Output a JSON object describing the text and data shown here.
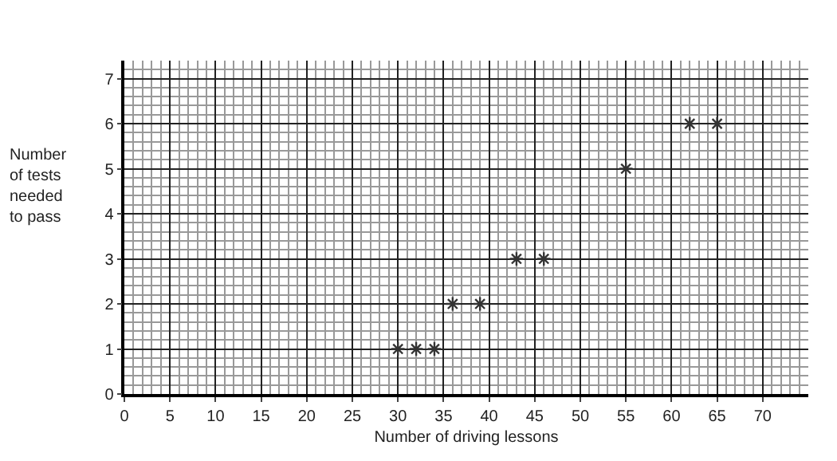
{
  "chart_data": {
    "type": "scatter",
    "xlabel": "Number of driving lessons",
    "ylabel": "Number of tests needed to pass",
    "x": [
      30,
      32,
      34,
      36,
      39,
      43,
      46,
      55,
      62,
      65
    ],
    "values": [
      1,
      1,
      1,
      2,
      2,
      3,
      3,
      5,
      6,
      6
    ],
    "color": "#333333",
    "marker": "cross",
    "xlim": [
      0,
      75
    ],
    "xticks": [
      0,
      5,
      10,
      15,
      20,
      25,
      30,
      35,
      40,
      45,
      50,
      55,
      60,
      65,
      70
    ],
    "ylim": [
      0,
      7.4
    ],
    "yticks": [
      0,
      1,
      2,
      3,
      4,
      5,
      6,
      7
    ],
    "grid": true
  }
}
